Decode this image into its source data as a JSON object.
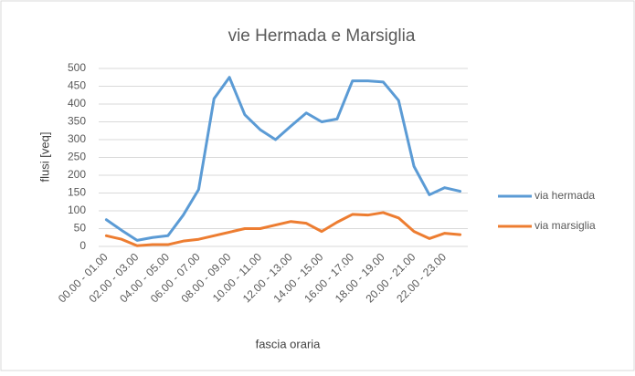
{
  "chart_data": {
    "type": "line",
    "title": "vie Hermada e Marsiglia",
    "y_label": "flusi [veq]",
    "x_label": "fascia oraria",
    "categories": [
      "00.00 - 01.00",
      null,
      "02.00 - 03.00",
      null,
      "04.00 - 05.00",
      null,
      "06.00 - 07.00",
      null,
      "08.00 - 09.00",
      null,
      "10.00 - 11.00",
      null,
      "12.00 - 13.00",
      null,
      "14.00 - 15.00",
      null,
      "16.00 - 17.00",
      null,
      "18.00 - 19.00",
      null,
      "20.00 - 21.00",
      null,
      "22.00 - 23.00",
      null
    ],
    "series": [
      {
        "name": "via hermada",
        "color": "#5b9bd5",
        "values": [
          75,
          45,
          17,
          25,
          30,
          88,
          160,
          415,
          475,
          370,
          328,
          300,
          338,
          375,
          350,
          358,
          465,
          465,
          462,
          410,
          225,
          145,
          165,
          155
        ]
      },
      {
        "name": "via marsiglia",
        "color": "#ed7d31",
        "values": [
          30,
          20,
          2,
          5,
          5,
          15,
          20,
          30,
          40,
          50,
          50,
          60,
          70,
          65,
          42,
          68,
          90,
          88,
          95,
          80,
          42,
          22,
          37,
          33
        ]
      }
    ],
    "ylim": [
      0,
      500
    ],
    "yticks": [
      0,
      50,
      100,
      150,
      200,
      250,
      300,
      350,
      400,
      450,
      500
    ],
    "grid": true,
    "legend": "right"
  }
}
